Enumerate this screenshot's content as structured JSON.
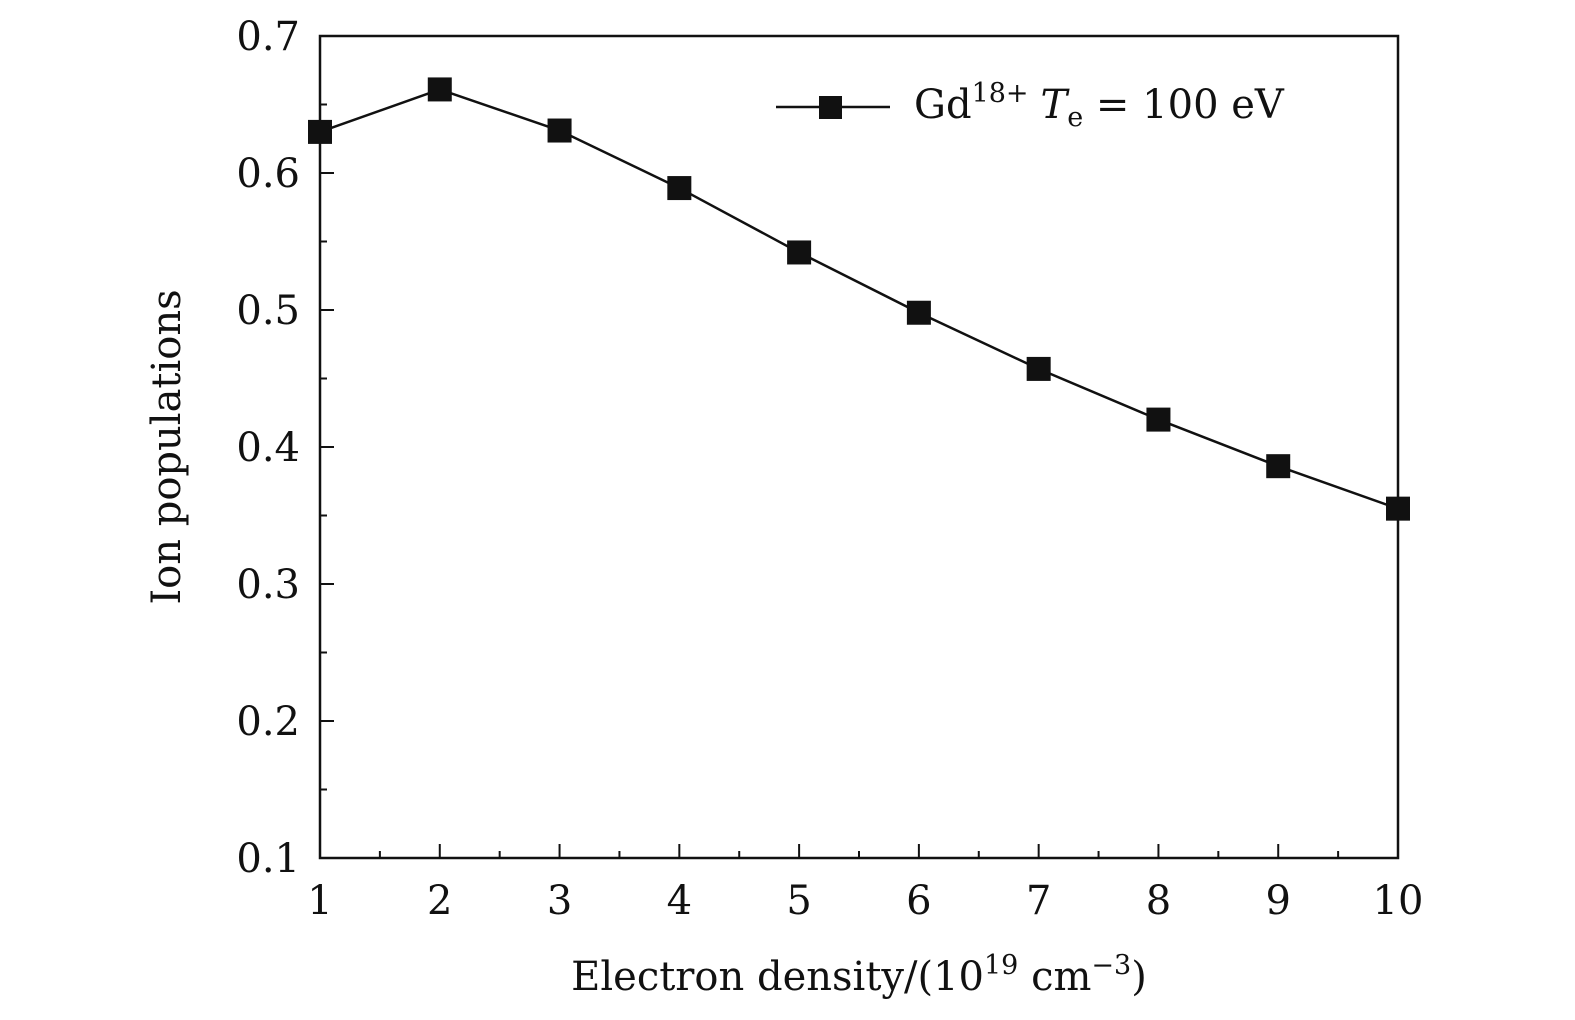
{
  "chart_data": {
    "type": "line",
    "xlabel": {
      "prefix": "Electron density/(10",
      "exp1": "19",
      "mid": " cm",
      "exp2": "−3",
      "suffix": ")"
    },
    "ylabel": "Ion populations",
    "xlim": [
      1,
      10
    ],
    "ylim": [
      0.1,
      0.7
    ],
    "x_ticks": [
      1,
      2,
      3,
      4,
      5,
      6,
      7,
      8,
      9,
      10
    ],
    "x_tick_labels": [
      "1",
      "2",
      "3",
      "4",
      "5",
      "6",
      "7",
      "8",
      "9",
      "10"
    ],
    "y_ticks": [
      0.1,
      0.2,
      0.3,
      0.4,
      0.5,
      0.6,
      0.7
    ],
    "y_tick_labels": [
      "0.1",
      "0.2",
      "0.3",
      "0.4",
      "0.5",
      "0.6",
      "0.7"
    ],
    "grid": false,
    "legend_position": "top-right",
    "series": [
      {
        "name": "Gd¹⁸⁺ Tₑ = 100 eV",
        "legend": {
          "ion": "Gd",
          "charge": "18+",
          "var": "T",
          "var_sub": "e",
          "rest": " = 100 eV"
        },
        "color": "#111111",
        "marker": "filled-square",
        "x": [
          1,
          2,
          3,
          4,
          5,
          6,
          7,
          8,
          9,
          10
        ],
        "y": [
          0.63,
          0.661,
          0.631,
          0.589,
          0.542,
          0.498,
          0.457,
          0.42,
          0.386,
          0.355
        ]
      }
    ]
  }
}
